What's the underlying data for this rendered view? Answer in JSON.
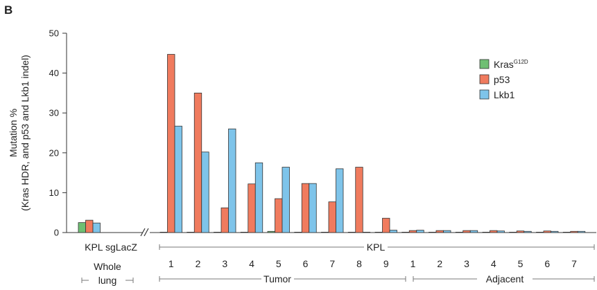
{
  "panel_label": "B",
  "colors": {
    "kras": "#6fbf73",
    "p53": "#f07b5e",
    "lkb1": "#7ec4ea",
    "axis": "#333333",
    "bracket": "#777777"
  },
  "chart_data": {
    "type": "bar",
    "ylabel_line1": "Mutation %",
    "ylabel_line2": "(Kras HDR, and p53 and Lkb1 indel)",
    "ylim": [
      0,
      50
    ],
    "yticks": [
      0,
      10,
      20,
      30,
      40,
      50
    ],
    "legend": {
      "placement": "top-right",
      "items": [
        {
          "base": "Kras",
          "sup": "G12D",
          "color_key": "kras"
        },
        {
          "base": "p53",
          "sup": "",
          "color_key": "p53"
        },
        {
          "base": "Lkb1",
          "sup": "",
          "color_key": "lkb1"
        }
      ]
    },
    "series_names": [
      "KrasG12D",
      "p53",
      "Lkb1"
    ],
    "groups": [
      {
        "label": "KPL sgLacZ",
        "values": [
          2.5,
          3.1,
          2.4
        ]
      },
      {
        "label": "1",
        "values": [
          0.1,
          44.7,
          26.7
        ]
      },
      {
        "label": "2",
        "values": [
          0.1,
          35.0,
          20.2
        ]
      },
      {
        "label": "3",
        "values": [
          0.1,
          6.2,
          26.0
        ]
      },
      {
        "label": "4",
        "values": [
          0.1,
          12.2,
          17.5
        ]
      },
      {
        "label": "5",
        "values": [
          0.3,
          8.5,
          16.4
        ]
      },
      {
        "label": "6",
        "values": [
          0.1,
          12.3,
          12.3
        ]
      },
      {
        "label": "7",
        "values": [
          0.1,
          7.7,
          16.0
        ]
      },
      {
        "label": "8",
        "values": [
          0.1,
          16.4,
          0.1
        ]
      },
      {
        "label": "9",
        "values": [
          0.1,
          3.6,
          0.6
        ]
      },
      {
        "label": "1",
        "values": [
          0.1,
          0.5,
          0.6
        ]
      },
      {
        "label": "2",
        "values": [
          0.1,
          0.5,
          0.5
        ]
      },
      {
        "label": "3",
        "values": [
          0.1,
          0.5,
          0.5
        ]
      },
      {
        "label": "4",
        "values": [
          0.1,
          0.5,
          0.4
        ]
      },
      {
        "label": "5",
        "values": [
          0.1,
          0.4,
          0.3
        ]
      },
      {
        "label": "6",
        "values": [
          0.1,
          0.4,
          0.3
        ]
      },
      {
        "label": "7",
        "values": [
          0.1,
          0.3,
          0.3
        ]
      }
    ],
    "annotations": {
      "kpl": "KPL",
      "whole_line1": "Whole",
      "whole_line2": "lung",
      "tumor": "Tumor",
      "adjacent": "Adjacent"
    }
  }
}
